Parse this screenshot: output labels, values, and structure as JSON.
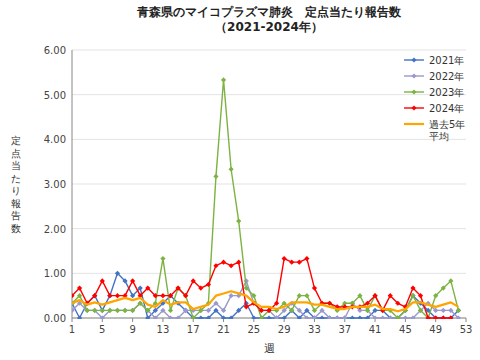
{
  "chart_data": {
    "type": "line",
    "title": "青森県のマイコプラズマ肺炎　定点当たり報告数\n（2021-2024年）",
    "x_label": "週",
    "y_label": "定\n点\n当\nた\nり\n報\n告\n数",
    "x": [
      1,
      2,
      3,
      4,
      5,
      6,
      7,
      8,
      9,
      10,
      11,
      12,
      13,
      14,
      15,
      16,
      17,
      18,
      19,
      20,
      21,
      22,
      23,
      24,
      25,
      26,
      27,
      28,
      29,
      30,
      31,
      32,
      33,
      34,
      35,
      36,
      37,
      38,
      39,
      40,
      41,
      42,
      43,
      44,
      45,
      46,
      47,
      48,
      49,
      50,
      51,
      52
    ],
    "xlim": [
      1,
      53
    ],
    "xticks": [
      1,
      5,
      9,
      13,
      17,
      21,
      25,
      29,
      33,
      37,
      41,
      45,
      49,
      53
    ],
    "ylim": [
      0.0,
      6.0
    ],
    "yticks": [
      {
        "value": 0.0,
        "label": "0.00"
      },
      {
        "value": 1.0,
        "label": "1.00"
      },
      {
        "value": 2.0,
        "label": "2.00"
      },
      {
        "value": 3.0,
        "label": "3.00"
      },
      {
        "value": 4.0,
        "label": "4.00"
      },
      {
        "value": 5.0,
        "label": "5.00"
      },
      {
        "value": 6.0,
        "label": "6.00"
      }
    ],
    "grid": true,
    "legend": "upper right",
    "series": [
      {
        "name": "2021年",
        "color": "#4472C4",
        "marker": "diamond",
        "values": [
          0.33,
          0.0,
          0.33,
          0.5,
          0.17,
          0.5,
          1.0,
          0.83,
          0.5,
          0.67,
          0.0,
          0.17,
          0.33,
          0.5,
          0.33,
          0.17,
          0.0,
          0.0,
          0.0,
          0.17,
          0.0,
          0.0,
          0.17,
          0.33,
          0.0,
          0.0,
          0.0,
          0.0,
          0.0,
          0.17,
          0.0,
          0.17,
          0.0,
          0.0,
          0.0,
          0.0,
          0.0,
          0.0,
          0.0,
          0.0,
          0.17,
          0.17,
          0.0,
          0.0,
          0.17,
          0.5,
          0.33,
          0.17,
          0.0,
          0.0,
          0.0,
          0.17
        ]
      },
      {
        "name": "2022年",
        "color": "#9999CC",
        "marker": "diamond",
        "values": [
          0.17,
          0.33,
          0.17,
          0.17,
          0.0,
          0.17,
          0.17,
          0.17,
          0.17,
          0.33,
          0.17,
          0.0,
          0.17,
          0.0,
          0.0,
          0.17,
          0.17,
          0.17,
          0.17,
          0.33,
          0.17,
          0.5,
          0.5,
          0.83,
          0.33,
          0.17,
          0.17,
          0.0,
          0.17,
          0.33,
          0.17,
          0.0,
          0.0,
          0.17,
          0.0,
          0.0,
          0.0,
          0.33,
          0.17,
          0.17,
          0.0,
          0.0,
          0.0,
          0.0,
          0.0,
          0.0,
          0.17,
          0.33,
          0.17,
          0.17,
          0.17,
          0.0
        ]
      },
      {
        "name": "2023年",
        "color": "#7CB342",
        "marker": "diamond",
        "values": [
          0.33,
          0.5,
          0.17,
          0.17,
          0.17,
          0.17,
          0.17,
          0.17,
          0.17,
          0.33,
          0.17,
          0.33,
          1.33,
          0.17,
          0.67,
          0.5,
          0.0,
          0.17,
          0.33,
          3.17,
          5.33,
          3.33,
          2.17,
          0.67,
          0.5,
          0.0,
          0.17,
          0.17,
          0.33,
          0.17,
          0.5,
          0.5,
          0.17,
          0.33,
          0.33,
          0.17,
          0.33,
          0.33,
          0.5,
          0.17,
          0.5,
          0.17,
          0.17,
          0.0,
          0.17,
          0.5,
          0.17,
          0.0,
          0.5,
          0.67,
          0.83,
          0.17
        ]
      },
      {
        "name": "2024年",
        "color": "#FF0000",
        "marker": "diamond",
        "values": [
          0.5,
          0.67,
          0.33,
          0.5,
          0.83,
          0.5,
          0.5,
          0.5,
          0.83,
          0.5,
          0.67,
          0.5,
          0.5,
          0.5,
          0.67,
          0.5,
          0.83,
          0.67,
          0.75,
          1.17,
          1.25,
          1.17,
          1.25,
          0.25,
          0.33,
          0.17,
          0.17,
          0.33,
          1.33,
          1.25,
          1.25,
          1.33,
          0.67,
          0.33,
          0.33,
          0.25,
          0.25,
          0.25,
          0.25,
          0.33,
          0.5,
          0.17,
          0.5,
          0.33,
          0.25,
          0.67,
          0.5,
          0.0,
          0.0,
          0.0,
          0.0,
          null
        ]
      },
      {
        "name": "過去5年\n平均",
        "color": "#FFA500",
        "marker": "none",
        "values": [
          0.33,
          0.4,
          0.3,
          0.35,
          0.3,
          0.35,
          0.4,
          0.45,
          0.4,
          0.45,
          0.3,
          0.25,
          0.4,
          0.3,
          0.35,
          0.35,
          0.2,
          0.25,
          0.3,
          0.5,
          0.55,
          0.6,
          0.55,
          0.5,
          0.35,
          0.25,
          0.25,
          0.2,
          0.25,
          0.35,
          0.35,
          0.35,
          0.3,
          0.3,
          0.25,
          0.2,
          0.2,
          0.25,
          0.25,
          0.25,
          0.3,
          0.2,
          0.2,
          0.15,
          0.2,
          0.35,
          0.35,
          0.3,
          0.25,
          0.3,
          0.35,
          0.25
        ]
      }
    ]
  }
}
